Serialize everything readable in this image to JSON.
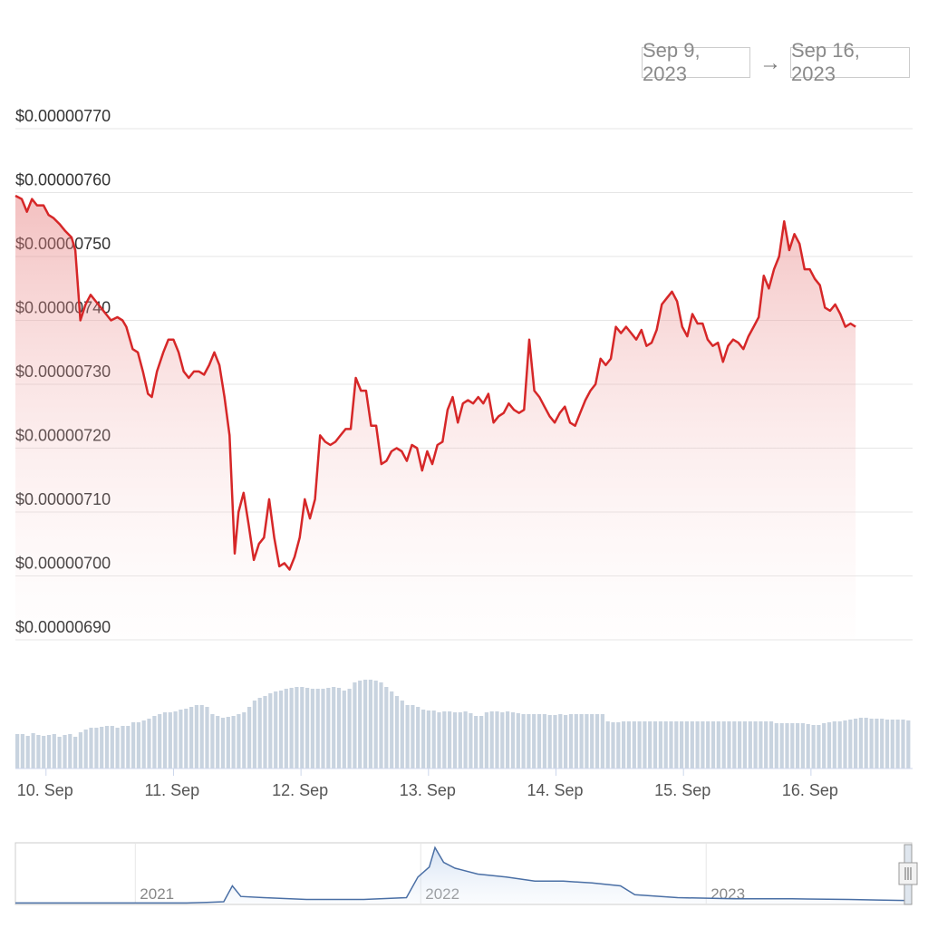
{
  "range_selector": {
    "start": "Sep 9, 2023",
    "arrow": "→",
    "end": "Sep 16, 2023"
  },
  "colors": {
    "price_line": "#d62728",
    "volume_bar": "#c8d3df",
    "navigator_line": "#4a6fa5",
    "grid": "#e6e6e6"
  },
  "chart_data": [
    {
      "type": "line",
      "title": "",
      "ylim": [
        6.9e-06,
        7.7e-06
      ],
      "y_ticks": [
        "$0.00000690",
        "$0.00000700",
        "$0.00000710",
        "$0.00000720",
        "$0.00000730",
        "$0.00000740",
        "$0.00000750",
        "$0.00000760",
        "$0.00000770"
      ],
      "y_tick_values": [
        6.9e-06,
        7e-06,
        7.1e-06,
        7.2e-06,
        7.3e-06,
        7.4e-06,
        7.5e-06,
        7.6e-06,
        7.7e-06
      ],
      "x_ticks": [
        "10. Sep",
        "11. Sep",
        "12. Sep",
        "13. Sep",
        "14. Sep",
        "15. Sep",
        "16. Sep"
      ],
      "x_tick_positions": [
        0,
        1,
        2,
        3,
        4,
        5,
        6
      ],
      "xlim": [
        -0.24,
        6.79
      ],
      "grid": true,
      "points": [
        [
          -0.24,
          7.595e-06
        ],
        [
          -0.19,
          7.59e-06
        ],
        [
          -0.15,
          7.57e-06
        ],
        [
          -0.11,
          7.59e-06
        ],
        [
          -0.07,
          7.58e-06
        ],
        [
          -0.02,
          7.58e-06
        ],
        [
          0.02,
          7.565e-06
        ],
        [
          0.06,
          7.56e-06
        ],
        [
          0.11,
          7.55e-06
        ],
        [
          0.15,
          7.54e-06
        ],
        [
          0.2,
          7.53e-06
        ],
        [
          0.23,
          7.51e-06
        ],
        [
          0.27,
          7.4e-06
        ],
        [
          0.31,
          7.425e-06
        ],
        [
          0.35,
          7.44e-06
        ],
        [
          0.39,
          7.43e-06
        ],
        [
          0.43,
          7.42e-06
        ],
        [
          0.47,
          7.41e-06
        ],
        [
          0.51,
          7.4e-06
        ],
        [
          0.56,
          7.405e-06
        ],
        [
          0.6,
          7.4e-06
        ],
        [
          0.63,
          7.39e-06
        ],
        [
          0.68,
          7.355e-06
        ],
        [
          0.72,
          7.35e-06
        ],
        [
          0.76,
          7.32e-06
        ],
        [
          0.8,
          7.285e-06
        ],
        [
          0.83,
          7.28e-06
        ],
        [
          0.87,
          7.32e-06
        ],
        [
          0.92,
          7.35e-06
        ],
        [
          0.96,
          7.37e-06
        ],
        [
          1.0,
          7.37e-06
        ],
        [
          1.04,
          7.35e-06
        ],
        [
          1.08,
          7.32e-06
        ],
        [
          1.12,
          7.31e-06
        ],
        [
          1.16,
          7.32e-06
        ],
        [
          1.2,
          7.32e-06
        ],
        [
          1.24,
          7.315e-06
        ],
        [
          1.28,
          7.33e-06
        ],
        [
          1.32,
          7.35e-06
        ],
        [
          1.36,
          7.33e-06
        ],
        [
          1.4,
          7.28e-06
        ],
        [
          1.44,
          7.22e-06
        ],
        [
          1.48,
          7.035e-06
        ],
        [
          1.51,
          7.1e-06
        ],
        [
          1.55,
          7.13e-06
        ],
        [
          1.59,
          7.08e-06
        ],
        [
          1.63,
          7.025e-06
        ],
        [
          1.67,
          7.05e-06
        ],
        [
          1.71,
          7.06e-06
        ],
        [
          1.75,
          7.12e-06
        ],
        [
          1.79,
          7.06e-06
        ],
        [
          1.83,
          7.015e-06
        ],
        [
          1.87,
          7.02e-06
        ],
        [
          1.91,
          7.01e-06
        ],
        [
          1.95,
          7.03e-06
        ],
        [
          1.99,
          7.06e-06
        ],
        [
          2.03,
          7.12e-06
        ],
        [
          2.07,
          7.09e-06
        ],
        [
          2.11,
          7.12e-06
        ],
        [
          2.15,
          7.22e-06
        ],
        [
          2.19,
          7.21e-06
        ],
        [
          2.23,
          7.205e-06
        ],
        [
          2.27,
          7.21e-06
        ],
        [
          2.31,
          7.22e-06
        ],
        [
          2.35,
          7.23e-06
        ],
        [
          2.39,
          7.23e-06
        ],
        [
          2.43,
          7.31e-06
        ],
        [
          2.47,
          7.29e-06
        ],
        [
          2.51,
          7.29e-06
        ],
        [
          2.55,
          7.235e-06
        ],
        [
          2.59,
          7.235e-06
        ],
        [
          2.63,
          7.175e-06
        ],
        [
          2.67,
          7.18e-06
        ],
        [
          2.71,
          7.195e-06
        ],
        [
          2.75,
          7.2e-06
        ],
        [
          2.79,
          7.195e-06
        ],
        [
          2.83,
          7.18e-06
        ],
        [
          2.87,
          7.205e-06
        ],
        [
          2.91,
          7.2e-06
        ],
        [
          2.95,
          7.165e-06
        ],
        [
          2.99,
          7.195e-06
        ],
        [
          3.03,
          7.175e-06
        ],
        [
          3.07,
          7.205e-06
        ],
        [
          3.11,
          7.21e-06
        ],
        [
          3.15,
          7.26e-06
        ],
        [
          3.19,
          7.28e-06
        ],
        [
          3.23,
          7.24e-06
        ],
        [
          3.27,
          7.27e-06
        ],
        [
          3.31,
          7.275e-06
        ],
        [
          3.35,
          7.27e-06
        ],
        [
          3.39,
          7.28e-06
        ],
        [
          3.43,
          7.27e-06
        ],
        [
          3.47,
          7.285e-06
        ],
        [
          3.51,
          7.24e-06
        ],
        [
          3.55,
          7.25e-06
        ],
        [
          3.59,
          7.255e-06
        ],
        [
          3.63,
          7.27e-06
        ],
        [
          3.67,
          7.26e-06
        ],
        [
          3.71,
          7.255e-06
        ],
        [
          3.75,
          7.26e-06
        ],
        [
          3.79,
          7.37e-06
        ],
        [
          3.83,
          7.29e-06
        ],
        [
          3.87,
          7.28e-06
        ],
        [
          3.91,
          7.265e-06
        ],
        [
          3.95,
          7.25e-06
        ],
        [
          3.99,
          7.24e-06
        ],
        [
          4.03,
          7.255e-06
        ],
        [
          4.07,
          7.265e-06
        ],
        [
          4.11,
          7.24e-06
        ],
        [
          4.15,
          7.235e-06
        ],
        [
          4.19,
          7.255e-06
        ],
        [
          4.23,
          7.275e-06
        ],
        [
          4.27,
          7.29e-06
        ],
        [
          4.31,
          7.3e-06
        ],
        [
          4.35,
          7.34e-06
        ],
        [
          4.39,
          7.33e-06
        ],
        [
          4.43,
          7.34e-06
        ],
        [
          4.47,
          7.39e-06
        ],
        [
          4.51,
          7.38e-06
        ],
        [
          4.55,
          7.39e-06
        ],
        [
          4.59,
          7.38e-06
        ],
        [
          4.63,
          7.37e-06
        ],
        [
          4.67,
          7.385e-06
        ],
        [
          4.71,
          7.36e-06
        ],
        [
          4.75,
          7.365e-06
        ],
        [
          4.79,
          7.385e-06
        ],
        [
          4.83,
          7.425e-06
        ],
        [
          4.87,
          7.435e-06
        ],
        [
          4.91,
          7.445e-06
        ],
        [
          4.95,
          7.43e-06
        ],
        [
          4.99,
          7.39e-06
        ],
        [
          5.03,
          7.375e-06
        ],
        [
          5.07,
          7.41e-06
        ],
        [
          5.11,
          7.395e-06
        ],
        [
          5.15,
          7.395e-06
        ],
        [
          5.19,
          7.37e-06
        ],
        [
          5.23,
          7.36e-06
        ],
        [
          5.27,
          7.365e-06
        ],
        [
          5.31,
          7.335e-06
        ],
        [
          5.35,
          7.36e-06
        ],
        [
          5.39,
          7.37e-06
        ],
        [
          5.43,
          7.365e-06
        ],
        [
          5.47,
          7.355e-06
        ],
        [
          5.51,
          7.375e-06
        ],
        [
          5.55,
          7.39e-06
        ],
        [
          5.59,
          7.405e-06
        ],
        [
          5.63,
          7.47e-06
        ],
        [
          5.67,
          7.45e-06
        ],
        [
          5.71,
          7.48e-06
        ],
        [
          5.75,
          7.5e-06
        ],
        [
          5.79,
          7.555e-06
        ],
        [
          5.83,
          7.51e-06
        ],
        [
          5.87,
          7.535e-06
        ],
        [
          5.91,
          7.52e-06
        ],
        [
          5.95,
          7.48e-06
        ],
        [
          5.99,
          7.48e-06
        ],
        [
          6.03,
          7.465e-06
        ],
        [
          6.07,
          7.455e-06
        ],
        [
          6.11,
          7.42e-06
        ],
        [
          6.15,
          7.415e-06
        ],
        [
          6.19,
          7.425e-06
        ],
        [
          6.23,
          7.41e-06
        ],
        [
          6.27,
          7.39e-06
        ],
        [
          6.31,
          7.395e-06
        ],
        [
          6.35,
          7.39e-06
        ]
      ]
    },
    {
      "type": "bar",
      "title": "",
      "ylim": [
        0,
        1
      ],
      "xlim": [
        -0.24,
        6.79
      ],
      "values": [
        0.38,
        0.38,
        0.36,
        0.39,
        0.37,
        0.36,
        0.37,
        0.38,
        0.35,
        0.37,
        0.38,
        0.35,
        0.4,
        0.43,
        0.45,
        0.45,
        0.46,
        0.47,
        0.47,
        0.45,
        0.47,
        0.47,
        0.51,
        0.51,
        0.53,
        0.55,
        0.58,
        0.6,
        0.62,
        0.62,
        0.63,
        0.65,
        0.66,
        0.68,
        0.7,
        0.7,
        0.68,
        0.6,
        0.58,
        0.56,
        0.57,
        0.58,
        0.6,
        0.62,
        0.68,
        0.75,
        0.78,
        0.8,
        0.83,
        0.85,
        0.86,
        0.88,
        0.89,
        0.9,
        0.9,
        0.89,
        0.88,
        0.88,
        0.88,
        0.89,
        0.9,
        0.89,
        0.86,
        0.88,
        0.95,
        0.97,
        0.98,
        0.98,
        0.97,
        0.95,
        0.9,
        0.85,
        0.8,
        0.75,
        0.7,
        0.7,
        0.68,
        0.65,
        0.64,
        0.64,
        0.62,
        0.63,
        0.63,
        0.62,
        0.62,
        0.63,
        0.61,
        0.58,
        0.58,
        0.62,
        0.63,
        0.63,
        0.62,
        0.63,
        0.62,
        0.61,
        0.6,
        0.6,
        0.6,
        0.6,
        0.6,
        0.59,
        0.59,
        0.6,
        0.59,
        0.6,
        0.6,
        0.6,
        0.6,
        0.6,
        0.6,
        0.6,
        0.52,
        0.51,
        0.51,
        0.52,
        0.52,
        0.52,
        0.52,
        0.52,
        0.52,
        0.52,
        0.52,
        0.52,
        0.52,
        0.52,
        0.52,
        0.52,
        0.52,
        0.52,
        0.52,
        0.52,
        0.52,
        0.52,
        0.52,
        0.52,
        0.52,
        0.52,
        0.52,
        0.52,
        0.52,
        0.52,
        0.52,
        0.52,
        0.5,
        0.5,
        0.5,
        0.5,
        0.5,
        0.5,
        0.49,
        0.48,
        0.48,
        0.5,
        0.51,
        0.52,
        0.52,
        0.53,
        0.54,
        0.55,
        0.56,
        0.56,
        0.55,
        0.55,
        0.55,
        0.54,
        0.54,
        0.54,
        0.54,
        0.53
      ]
    },
    {
      "type": "area",
      "title": "",
      "x_labels": [
        "2021",
        "2022",
        "2023"
      ],
      "x_label_positions": [
        2021,
        2022,
        2023
      ],
      "xlim": [
        2020.58,
        2023.72
      ],
      "ylim": [
        0,
        1
      ],
      "points": [
        [
          2020.58,
          0.01
        ],
        [
          2020.9,
          0.01
        ],
        [
          2021.18,
          0.01
        ],
        [
          2021.25,
          0.02
        ],
        [
          2021.31,
          0.03
        ],
        [
          2021.34,
          0.3
        ],
        [
          2021.37,
          0.12
        ],
        [
          2021.45,
          0.1
        ],
        [
          2021.6,
          0.07
        ],
        [
          2021.8,
          0.07
        ],
        [
          2021.95,
          0.1
        ],
        [
          2021.99,
          0.45
        ],
        [
          2022.03,
          0.62
        ],
        [
          2022.05,
          0.95
        ],
        [
          2022.08,
          0.7
        ],
        [
          2022.12,
          0.6
        ],
        [
          2022.2,
          0.5
        ],
        [
          2022.3,
          0.45
        ],
        [
          2022.4,
          0.38
        ],
        [
          2022.5,
          0.38
        ],
        [
          2022.6,
          0.35
        ],
        [
          2022.7,
          0.3
        ],
        [
          2022.75,
          0.15
        ],
        [
          2022.9,
          0.1
        ],
        [
          2023.1,
          0.08
        ],
        [
          2023.3,
          0.08
        ],
        [
          2023.5,
          0.07
        ],
        [
          2023.6,
          0.06
        ],
        [
          2023.72,
          0.05
        ]
      ]
    }
  ]
}
